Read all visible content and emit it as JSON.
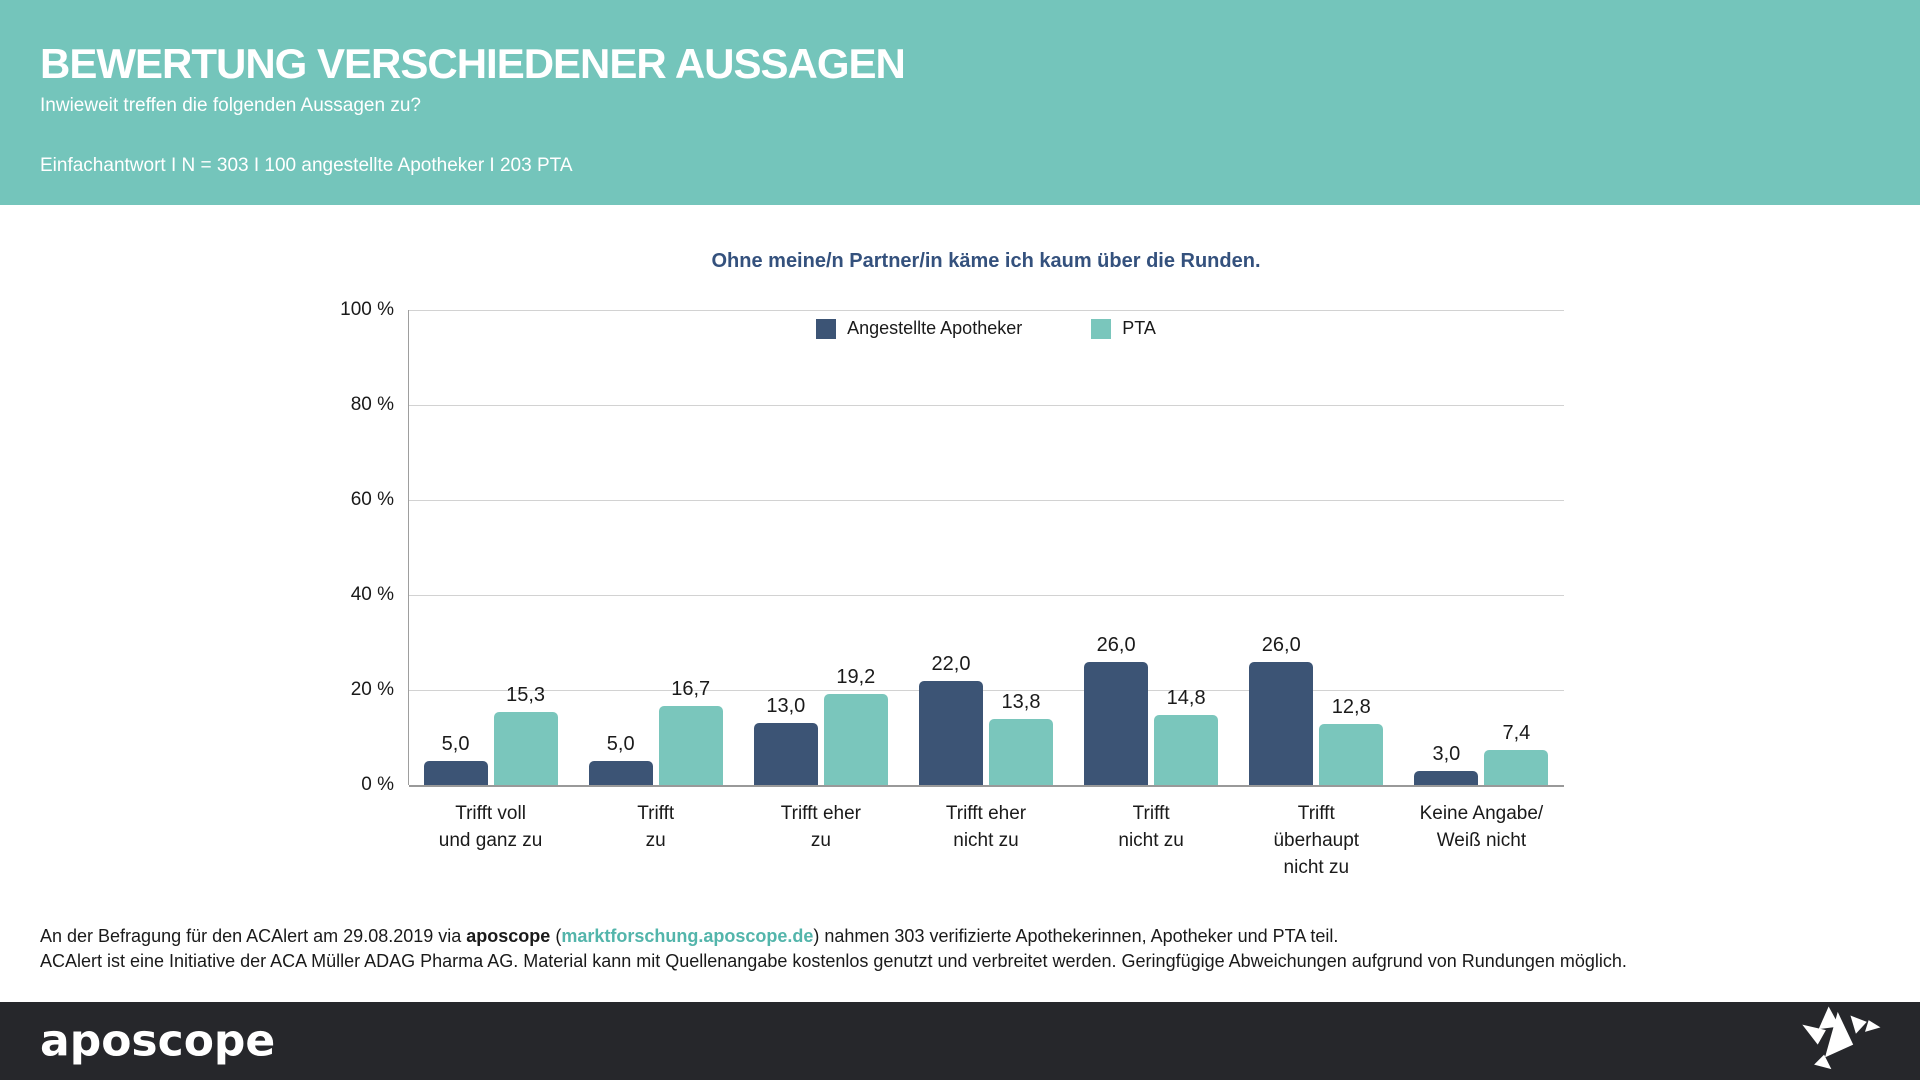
{
  "header": {
    "title": "BEWERTUNG VERSCHIEDENER AUSSAGEN",
    "subtitle": "Inwieweit treffen die folgenden Aussagen zu?",
    "meta": "Einfachantwort I N = 303 I 100 angestellte Apotheker I 203 PTA"
  },
  "chart_data": {
    "type": "bar",
    "title": "Ohne meine/n Partner/in käme ich kaum über die Runden.",
    "categories": [
      [
        "Trifft voll",
        "und ganz zu"
      ],
      [
        "Trifft",
        "zu"
      ],
      [
        "Trifft eher",
        "zu"
      ],
      [
        "Trifft eher",
        "nicht zu"
      ],
      [
        "Trifft",
        "nicht zu"
      ],
      [
        "Trifft",
        "überhaupt",
        "nicht zu"
      ],
      [
        "Keine Angabe/",
        "Weiß nicht"
      ]
    ],
    "series": [
      {
        "name": "Angestellte Apotheker",
        "color": "#3c5475",
        "values": [
          5.0,
          5.0,
          13.0,
          22.0,
          26.0,
          26.0,
          3.0
        ],
        "value_labels": [
          "5,0",
          "5,0",
          "13,0",
          "22,0",
          "26,0",
          "26,0",
          "3,0"
        ]
      },
      {
        "name": "PTA",
        "color": "#7ac6bc",
        "values": [
          15.3,
          16.7,
          19.2,
          13.8,
          14.8,
          12.8,
          7.4
        ],
        "value_labels": [
          "15,3",
          "16,7",
          "19,2",
          "13,8",
          "14,8",
          "12,8",
          "7,4"
        ]
      }
    ],
    "y_ticks": [
      "100 %",
      "80 %",
      "60 %",
      "40 %",
      "20 %",
      "0 %"
    ],
    "ylim": [
      0,
      100
    ],
    "grid": true,
    "legend_position": "top-center"
  },
  "footnote": {
    "line1_prefix": "An der Befragung für den ACAlert am 29.08.2019 via ",
    "line1_bold": "aposcope",
    "line1_open_paren": " (",
    "link": "marktforschung.aposcope.de",
    "line1_suffix": ") nahmen 303 verifizierte Apothekerinnen, Apotheker und PTA teil.",
    "line2": "ACAlert ist eine Initiative der ACA Müller ADAG Pharma AG. Material kann mit Quellenangabe kostenlos genutzt und verbreitet werden. Geringfügige Abweichungen aufgrund von Rundungen möglich."
  },
  "footer": {
    "logo": "aposcope",
    "bird_icon": "origami-bird-icon"
  },
  "colors": {
    "header_bg": "#74c5bb",
    "series_apotheker": "#3c5475",
    "series_pta": "#7ac6bc",
    "chart_title": "#34517d",
    "link": "#53b5ab",
    "footer_bg": "#26272b",
    "gridline": "#d2d2d2"
  }
}
